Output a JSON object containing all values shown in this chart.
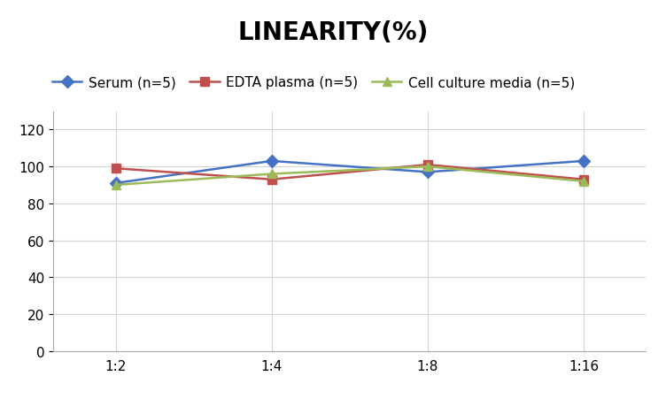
{
  "title": "LINEARITY(%)",
  "x_labels": [
    "1:2",
    "1:4",
    "1:8",
    "1:16"
  ],
  "series": [
    {
      "label": "Serum (n=5)",
      "values": [
        91,
        103,
        97,
        103
      ],
      "color": "#4472C4",
      "marker": "D",
      "linestyle": "-"
    },
    {
      "label": "EDTA plasma (n=5)",
      "values": [
        99,
        93,
        101,
        93
      ],
      "color": "#C0504D",
      "marker": "s",
      "linestyle": "-"
    },
    {
      "label": "Cell culture media (n=5)",
      "values": [
        90,
        96,
        100,
        92
      ],
      "color": "#9BBB59",
      "marker": "^",
      "linestyle": "-"
    }
  ],
  "ylim": [
    0,
    130
  ],
  "yticks": [
    0,
    20,
    40,
    60,
    80,
    100,
    120
  ],
  "background_color": "#FFFFFF",
  "grid_color": "#D3D3D3",
  "title_fontsize": 20,
  "legend_fontsize": 11,
  "tick_fontsize": 11
}
